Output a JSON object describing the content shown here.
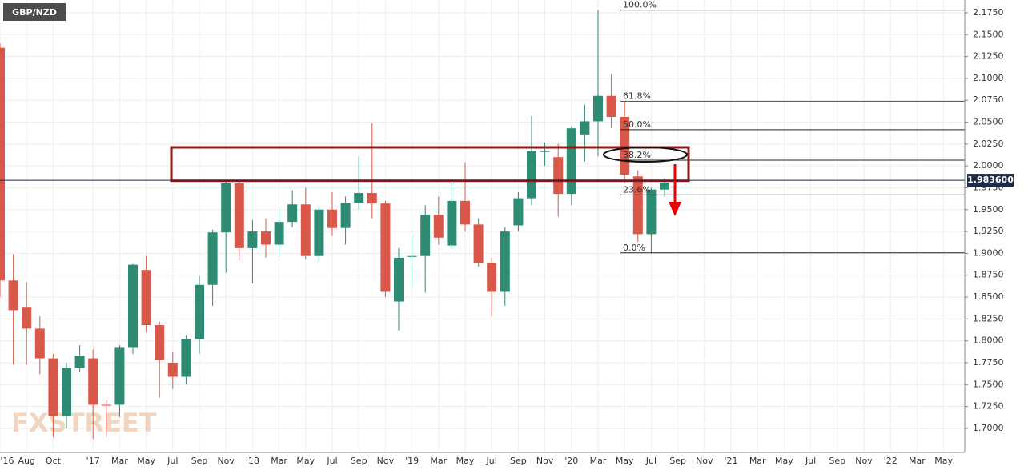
{
  "chart_data": {
    "type": "candlestick",
    "title": "GBP/NZD",
    "watermark": "FXSTREET",
    "categories": [
      "'16",
      null,
      "Aug",
      null,
      "Oct",
      null,
      null,
      "'17",
      null,
      "Mar",
      null,
      "May",
      null,
      "Jul",
      null,
      "Sep",
      null,
      "Nov",
      null,
      "'18",
      null,
      "Mar",
      null,
      "May",
      null,
      "Jul",
      null,
      "Sep",
      null,
      "Nov",
      null,
      "'19",
      null,
      "Mar",
      null,
      "May",
      null,
      "Jul",
      null,
      "Sep",
      null,
      "Nov",
      null,
      "'20",
      null,
      "Mar",
      null,
      "May",
      null,
      "Jul",
      null,
      "Sep",
      null,
      "Nov",
      null,
      "'21",
      null,
      "Mar",
      null,
      "May",
      null,
      "Jul",
      null,
      "Sep",
      null,
      "Nov",
      null,
      "'22",
      null,
      "Mar",
      null,
      "May"
    ],
    "open": [
      2.135,
      1.869,
      1.838,
      1.814,
      1.78,
      1.714,
      1.769,
      1.78,
      1.727,
      1.727,
      1.792,
      1.881,
      1.818,
      1.775,
      1.759,
      1.802,
      1.864,
      1.924,
      1.98,
      1.906,
      1.925,
      1.91,
      1.936,
      1.956,
      1.897,
      1.95,
      1.929,
      1.958,
      1.969,
      1.957,
      1.845,
      1.896,
      1.897,
      1.944,
      1.909,
      1.96,
      1.933,
      1.889,
      1.856,
      1.932,
      1.963,
      2.016,
      2.01,
      1.968,
      2.036,
      2.051,
      2.08,
      2.056,
      1.988,
      1.922,
      1.973,
      null,
      null,
      null,
      null,
      null,
      null,
      null,
      null,
      null,
      null,
      null,
      null,
      null,
      null,
      null,
      null,
      null,
      null,
      null,
      null,
      null
    ],
    "high": [
      2.14,
      1.899,
      1.867,
      1.828,
      1.785,
      1.775,
      1.795,
      1.79,
      1.732,
      1.795,
      1.888,
      1.897,
      1.822,
      1.787,
      1.806,
      1.874,
      1.927,
      1.982,
      1.982,
      1.938,
      1.94,
      1.95,
      1.972,
      1.975,
      1.955,
      1.97,
      1.965,
      2.011,
      2.049,
      1.96,
      1.906,
      1.92,
      1.955,
      1.965,
      1.98,
      2.004,
      1.94,
      1.895,
      1.93,
      1.97,
      2.057,
      2.027,
      2.025,
      2.045,
      2.07,
      2.178,
      2.105,
      2.073,
      1.995,
      1.975,
      1.986,
      null,
      null,
      null,
      null,
      null,
      null,
      null,
      null,
      null,
      null,
      null,
      null,
      null,
      null,
      null,
      null,
      null,
      null,
      null,
      null,
      null
    ],
    "low": [
      1.85,
      1.773,
      1.773,
      1.762,
      1.69,
      1.7,
      1.765,
      1.688,
      1.69,
      1.713,
      1.785,
      1.81,
      1.735,
      1.745,
      1.75,
      1.785,
      1.84,
      1.878,
      1.892,
      1.866,
      1.895,
      1.895,
      1.93,
      1.893,
      1.891,
      1.92,
      1.91,
      1.95,
      1.94,
      1.85,
      1.812,
      1.86,
      1.855,
      1.91,
      1.905,
      1.925,
      1.885,
      1.828,
      1.84,
      1.925,
      1.955,
      2.0,
      1.942,
      1.955,
      2.005,
      2.011,
      2.043,
      1.98,
      1.913,
      1.9,
      1.965,
      null,
      null,
      null,
      null,
      null,
      null,
      null,
      null,
      null,
      null,
      null,
      null,
      null,
      null,
      null,
      null,
      null,
      null,
      null,
      null,
      null
    ],
    "close": [
      1.869,
      1.835,
      1.814,
      1.78,
      1.714,
      1.769,
      1.783,
      1.727,
      1.726,
      1.792,
      1.887,
      1.818,
      1.778,
      1.759,
      1.802,
      1.864,
      1.924,
      1.98,
      1.906,
      1.925,
      1.91,
      1.936,
      1.956,
      1.897,
      1.95,
      1.929,
      1.958,
      1.969,
      1.957,
      1.856,
      1.895,
      1.897,
      1.944,
      1.918,
      1.96,
      1.933,
      1.889,
      1.856,
      1.925,
      1.963,
      2.017,
      2.017,
      1.968,
      2.043,
      2.051,
      2.08,
      2.056,
      1.99,
      1.922,
      1.973,
      1.981,
      null,
      null,
      null,
      null,
      null,
      null,
      null,
      null,
      null,
      null,
      null,
      null,
      null,
      null,
      null,
      null,
      null,
      null,
      null,
      null,
      null
    ],
    "up_color": "#2e8b74",
    "down_color": "#d9584a",
    "ylim": [
      1.6725,
      2.1896
    ],
    "yticks": [
      {
        "value": 1.7,
        "label": "1.7000"
      },
      {
        "value": 1.725,
        "label": "1.7250"
      },
      {
        "value": 1.75,
        "label": "1.7500"
      },
      {
        "value": 1.775,
        "label": "1.7750"
      },
      {
        "value": 1.8,
        "label": "1.8000"
      },
      {
        "value": 1.825,
        "label": "1.8250"
      },
      {
        "value": 1.85,
        "label": "1.8500"
      },
      {
        "value": 1.875,
        "label": "1.8750"
      },
      {
        "value": 1.9,
        "label": "1.9000"
      },
      {
        "value": 1.925,
        "label": "1.9250"
      },
      {
        "value": 1.95,
        "label": "1.9500"
      },
      {
        "value": 1.975,
        "label": "1.9750"
      },
      {
        "value": 2.0,
        "label": "2.0000"
      },
      {
        "value": 2.025,
        "label": "2.0250"
      },
      {
        "value": 2.05,
        "label": "2.0500"
      },
      {
        "value": 2.075,
        "label": "2.0750"
      },
      {
        "value": 2.1,
        "label": "2.1000"
      },
      {
        "value": 2.125,
        "label": "2.1250"
      },
      {
        "value": 2.15,
        "label": "2.1500"
      },
      {
        "value": 2.175,
        "label": "2.1750"
      }
    ],
    "grid": true,
    "current_price": {
      "value": 1.9836,
      "label": "1.983600"
    },
    "fib_levels": [
      {
        "value": 2.178,
        "label": "100.0%"
      },
      {
        "value": 2.0736,
        "label": "61.8%"
      },
      {
        "value": 2.0415,
        "label": "50.0%"
      },
      {
        "value": 2.0065,
        "label": "38.2%"
      },
      {
        "value": 1.9669,
        "label": "23.6%"
      },
      {
        "value": 1.9006,
        "label": "0.0%"
      }
    ],
    "zone": {
      "low": 1.983,
      "high": 2.0212
    }
  }
}
